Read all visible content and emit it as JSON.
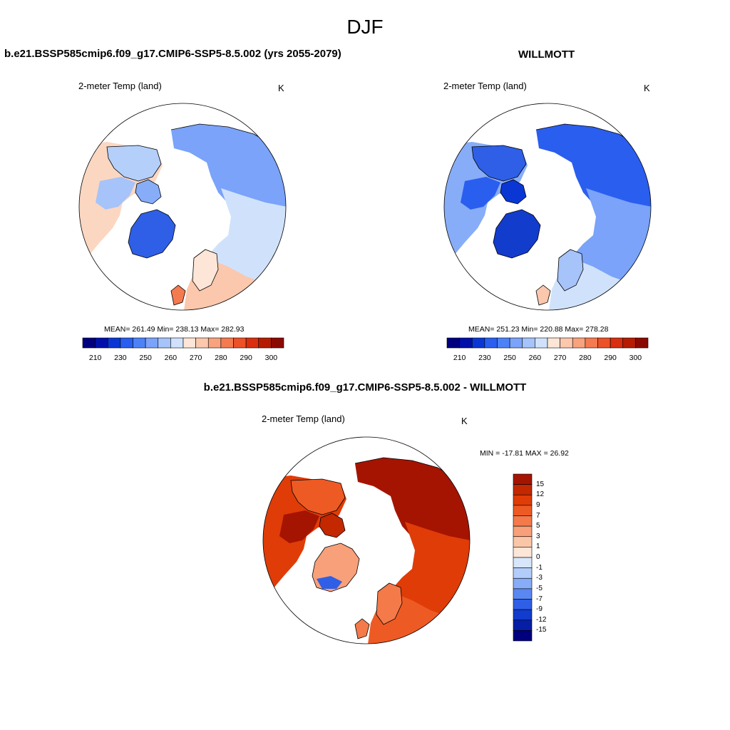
{
  "figure": {
    "title": "DJF"
  },
  "panels": [
    {
      "title": "b.e21.BSSP585cmip6.f09_g17.CMIP6-SSP5-8.5.002 (yrs 2055-2079)",
      "variable": "2-meter Temp (land)",
      "units": "K",
      "stats_text": "MEAN= 261.49  Min= 238.13  Max= 282.93",
      "mean": 261.49,
      "min": 238.13,
      "max": 282.93
    },
    {
      "title": "WILLMOTT",
      "variable": "2-meter Temp (land)",
      "units": "K",
      "stats_text": "MEAN= 251.23  Min= 220.88  Max= 278.28",
      "mean": 251.23,
      "min": 220.88,
      "max": 278.28
    },
    {
      "title": "b.e21.BSSP585cmip6.f09_g17.CMIP6-SSP5-8.5.002 - WILLMOTT",
      "variable": "2-meter Temp (land)",
      "units": "K",
      "stats_text": "MIN = -17.81 MAX =  26.92",
      "min": -17.81,
      "max": 26.92
    }
  ],
  "absolute_colorbar": {
    "orientation": "horizontal",
    "tick_labels": [
      "210",
      "230",
      "250",
      "260",
      "270",
      "280",
      "290",
      "300"
    ],
    "colors": [
      "#00007f",
      "#0010a8",
      "#0a37d4",
      "#2a5eef",
      "#4d82f7",
      "#7aa3f9",
      "#a6c3fa",
      "#d0e2fb",
      "#fde6d7",
      "#fbc7ad",
      "#f8a27e",
      "#f47a50",
      "#ec5128",
      "#d92e0f",
      "#b51c02",
      "#8b0a00"
    ]
  },
  "difference_colorbar": {
    "orientation": "vertical",
    "labels": [
      "15",
      "12",
      "9",
      "7",
      "5",
      "3",
      "1",
      "0",
      "-1",
      "-3",
      "-5",
      "-7",
      "-9",
      "-12",
      "-15"
    ],
    "colors": [
      "#a51400",
      "#c32800",
      "#df3c08",
      "#ee5a24",
      "#f47a4a",
      "#f8a07a",
      "#fbc6a8",
      "#fde6d7",
      "#d8e6fb",
      "#b3cdfa",
      "#87adf8",
      "#5a88f2",
      "#2f5fe6",
      "#123ccc",
      "#061ea6",
      "#00007f"
    ]
  },
  "colors": {
    "ocean": "#ffffff",
    "coast": "#000000"
  }
}
